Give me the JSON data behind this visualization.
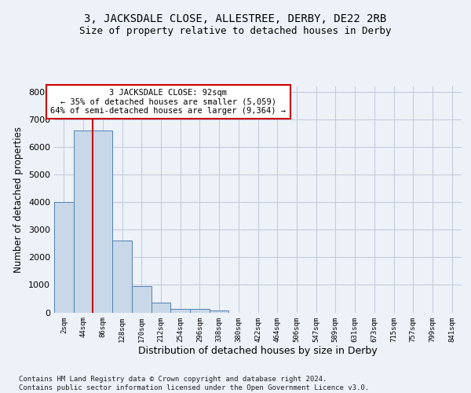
{
  "title_line1": "3, JACKSDALE CLOSE, ALLESTREE, DERBY, DE22 2RB",
  "title_line2": "Size of property relative to detached houses in Derby",
  "xlabel": "Distribution of detached houses by size in Derby",
  "ylabel": "Number of detached properties",
  "footer": "Contains HM Land Registry data © Crown copyright and database right 2024.\nContains public sector information licensed under the Open Government Licence v3.0.",
  "annotation_title": "3 JACKSDALE CLOSE: 92sqm",
  "annotation_line2": "← 35% of detached houses are smaller (5,059)",
  "annotation_line3": "64% of semi-detached houses are larger (9,364) →",
  "bar_values": [
    4000,
    6600,
    6600,
    2600,
    950,
    350,
    130,
    130,
    70,
    0,
    0,
    0,
    0,
    0,
    0,
    0,
    0,
    0,
    0,
    0,
    0
  ],
  "bar_labels": [
    "2sqm",
    "44sqm",
    "86sqm",
    "128sqm",
    "170sqm",
    "212sqm",
    "254sqm",
    "296sqm",
    "338sqm",
    "380sqm",
    "422sqm",
    "464sqm",
    "506sqm",
    "547sqm",
    "589sqm",
    "631sqm",
    "673sqm",
    "715sqm",
    "757sqm",
    "799sqm",
    "841sqm"
  ],
  "bar_color": "#c8d8e8",
  "bar_edge_color": "#5080b0",
  "vline_color": "#cc0000",
  "vline_pos": 1.5,
  "ylim": [
    0,
    8200
  ],
  "yticks": [
    0,
    1000,
    2000,
    3000,
    4000,
    5000,
    6000,
    7000,
    8000
  ],
  "grid_color": "#c0c8d8",
  "annotation_box_color": "#ffffff",
  "annotation_box_edgecolor": "#cc0000",
  "bg_color": "#edf2f8"
}
